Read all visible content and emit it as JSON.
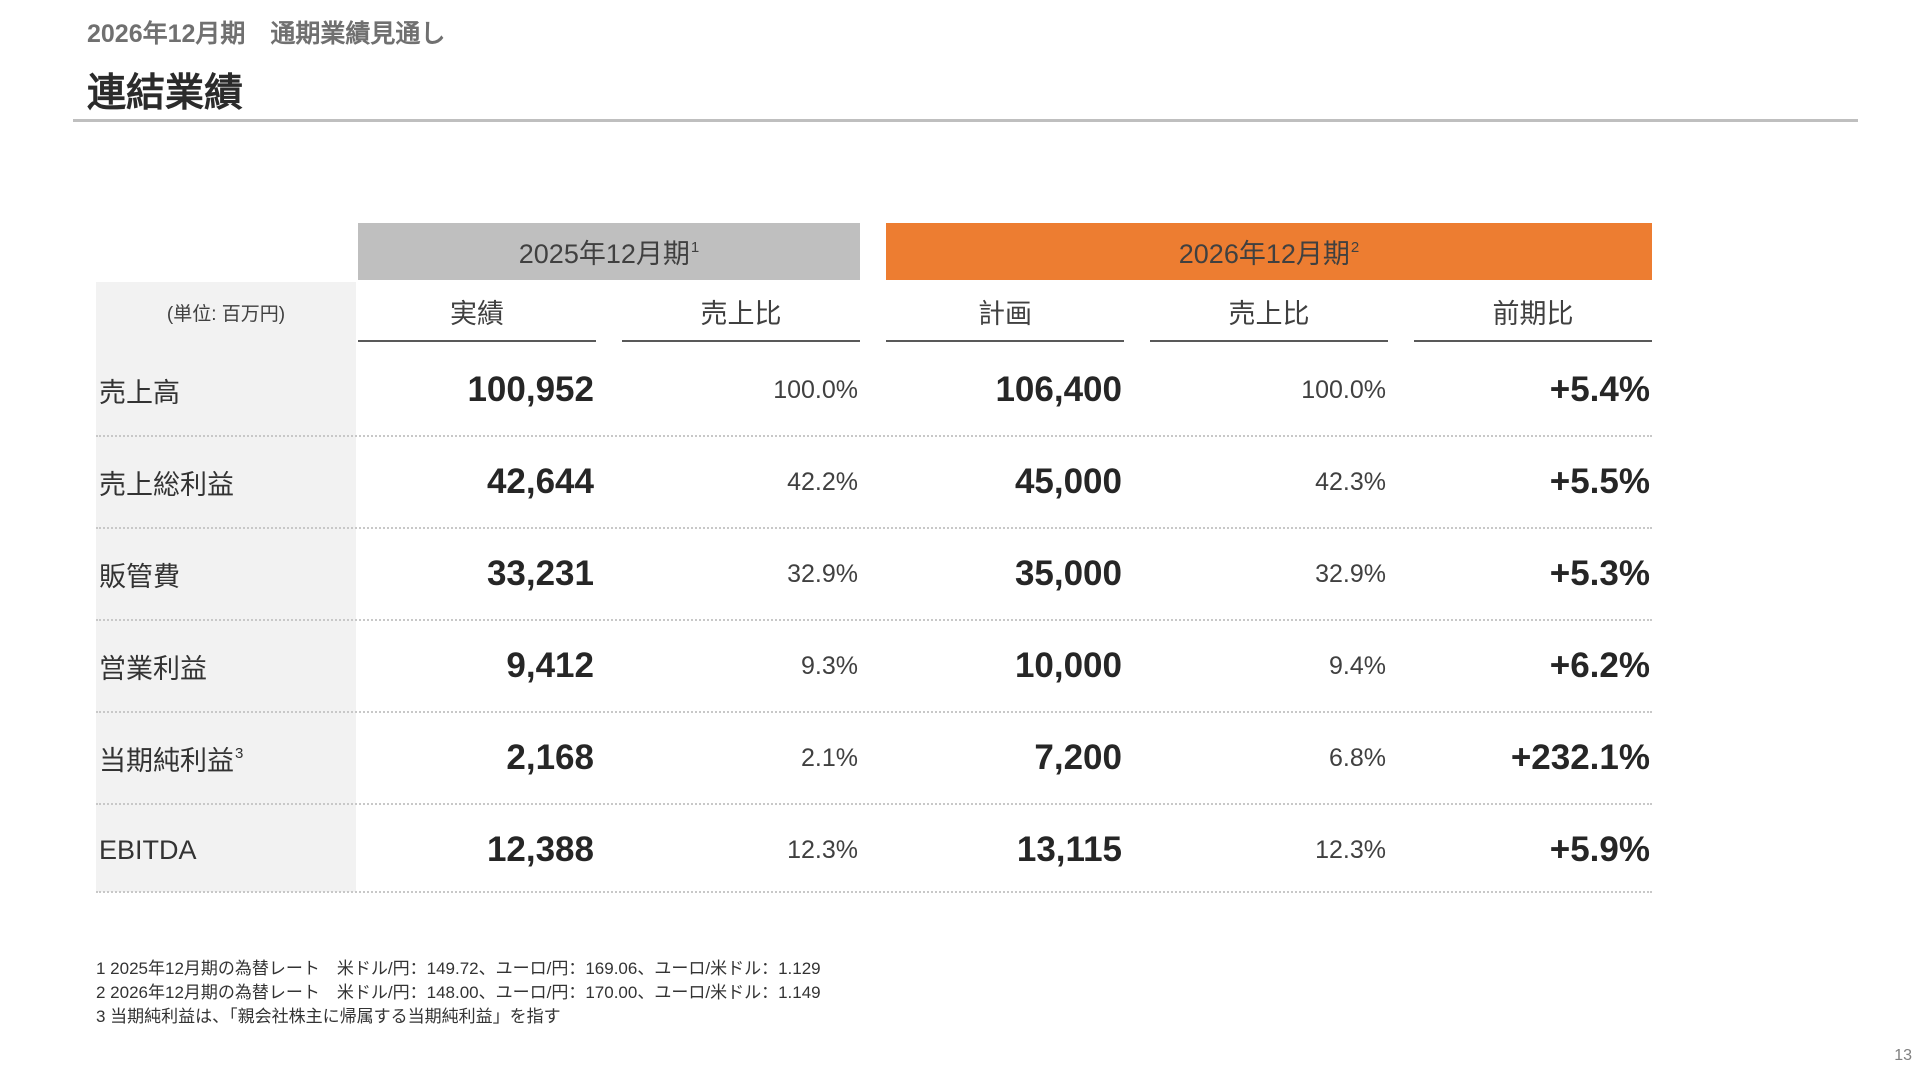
{
  "header": {
    "subtitle": "2026年12月期　通期業績見通し",
    "title": "連結業績"
  },
  "table": {
    "group_2025": {
      "label": "2025年12月期",
      "note": "1"
    },
    "group_2026": {
      "label": "2026年12月期",
      "note": "2"
    },
    "unit_label": "(単位: 百万円)",
    "columns": [
      "実績",
      "売上比",
      "計画",
      "売上比",
      "前期比"
    ],
    "rows": [
      {
        "label": "売上高",
        "note": "",
        "actual": "100,952",
        "actual_ratio": "100.0%",
        "plan": "106,400",
        "plan_ratio": "100.0%",
        "yoy": "+5.4%"
      },
      {
        "label": "売上総利益",
        "note": "",
        "actual": "42,644",
        "actual_ratio": "42.2%",
        "plan": "45,000",
        "plan_ratio": "42.3%",
        "yoy": "+5.5%"
      },
      {
        "label": "販管費",
        "note": "",
        "actual": "33,231",
        "actual_ratio": "32.9%",
        "plan": "35,000",
        "plan_ratio": "32.9%",
        "yoy": "+5.3%"
      },
      {
        "label": "営業利益",
        "note": "",
        "actual": "9,412",
        "actual_ratio": "9.3%",
        "plan": "10,000",
        "plan_ratio": "9.4%",
        "yoy": "+6.2%"
      },
      {
        "label": "当期純利益",
        "note": "3",
        "actual": "2,168",
        "actual_ratio": "2.1%",
        "plan": "7,200",
        "plan_ratio": "6.8%",
        "yoy": "+232.1%"
      },
      {
        "label": "EBITDA",
        "note": "",
        "actual": "12,388",
        "actual_ratio": "12.3%",
        "plan": "13,115",
        "plan_ratio": "12.3%",
        "yoy": "+5.9%"
      }
    ]
  },
  "footnotes": [
    "1 2025年12月期の為替レート　米ドル/円：149.72、ユーロ/円：169.06、ユーロ/米ドル：1.129",
    "2 2026年12月期の為替レート　米ドル/円：148.00、ユーロ/円：170.00、ユーロ/米ドル：1.149",
    "3 当期純利益は、「親会社株主に帰属する当期純利益」を指す"
  ],
  "page_number": "13",
  "colors": {
    "accent": "#ed7d31",
    "header_gray": "#bfbfbf",
    "label_bg": "#f2f2f2"
  }
}
